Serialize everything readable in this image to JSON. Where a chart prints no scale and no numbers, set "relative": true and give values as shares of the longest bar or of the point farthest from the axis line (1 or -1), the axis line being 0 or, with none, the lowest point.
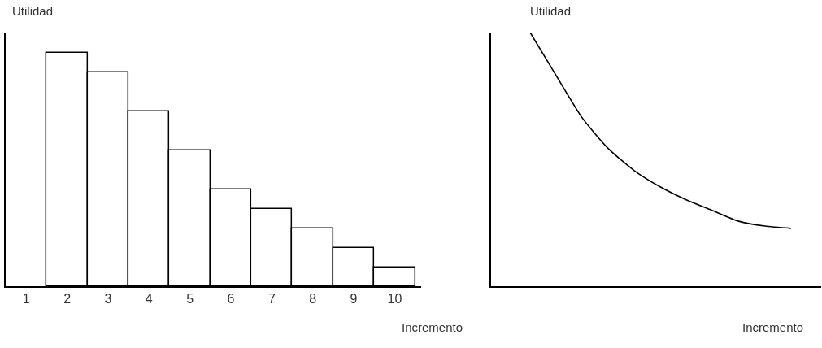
{
  "chart_data": [
    {
      "type": "bar",
      "relative": true,
      "xlabel": "Incremento",
      "ylabel": "Utilidad",
      "categories": [
        "1",
        "2",
        "3",
        "4",
        "5",
        "6",
        "7",
        "8",
        "9",
        "10"
      ],
      "series": [
        {
          "color": "#ffffff",
          "values": [
            null,
            1,
            0.916,
            0.749,
            0.582,
            0.415,
            0.331,
            0.247,
            0.164,
            0.08
          ]
        }
      ]
    },
    {
      "type": "line",
      "relative": true,
      "xlabel": "Incremento",
      "ylabel": "Utilidad",
      "categories": [
        null,
        null,
        null,
        null,
        null,
        null,
        null,
        null,
        null,
        null,
        null
      ],
      "series": [
        {
          "color": "#000000",
          "values": [
            1,
            0.83,
            0.663,
            0.542,
            0.455,
            0.391,
            0.34,
            0.298,
            0.256,
            0.237,
            0.228
          ]
        }
      ],
      "marker": "none",
      "line_style": "solid"
    }
  ]
}
